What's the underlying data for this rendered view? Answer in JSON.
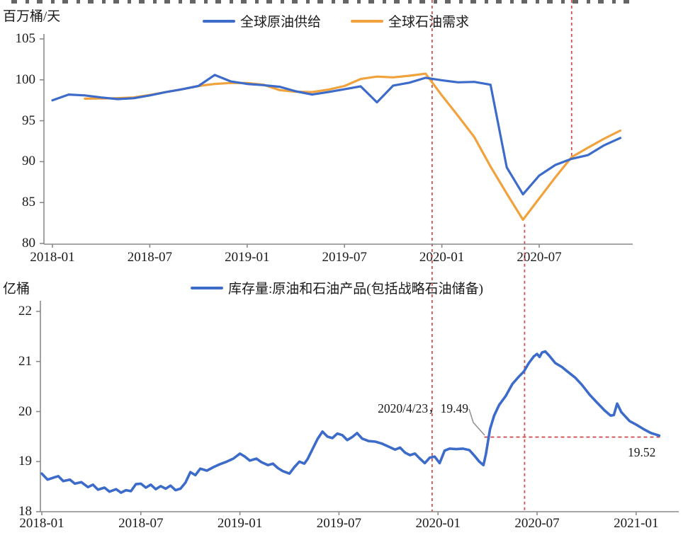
{
  "colors": {
    "supply_blue": "#3d6bc9",
    "demand_orange": "#f0a23c",
    "event_dashed_red": "#cc5252",
    "axis_gray": "#8a8a8a",
    "text": "#1a1a1a",
    "leader_gray": "#8f8f8f"
  },
  "chart_data": [
    {
      "type": "line",
      "unit_label": "百万桶/天",
      "x_start": "2018-01",
      "x_step": "month",
      "x_ticks": [
        "2018-01",
        "2018-07",
        "2019-01",
        "2019-07",
        "2020-01",
        "2020-07"
      ],
      "y_ticks": [
        105,
        100,
        95,
        90,
        85,
        80
      ],
      "ylim": [
        80,
        105
      ],
      "grid": false,
      "legend_position": "top",
      "series": [
        {
          "name": "全球原油供给",
          "color": "#3d6bc9",
          "start_month": 0,
          "values": [
            97.5,
            98.2,
            98.1,
            97.85,
            97.65,
            97.75,
            98.1,
            98.5,
            98.85,
            99.25,
            100.6,
            99.8,
            99.5,
            99.35,
            99.15,
            98.6,
            98.2,
            98.5,
            98.85,
            99.2,
            97.25,
            99.3,
            99.65,
            100.25,
            99.95,
            99.7,
            99.75,
            99.4,
            89.3,
            86.0,
            88.3,
            89.6,
            90.35,
            90.8,
            92.0,
            92.9
          ]
        },
        {
          "name": "全球石油需求",
          "color": "#f0a23c",
          "start_month": 2,
          "values": [
            97.7,
            97.72,
            97.76,
            97.85,
            98.15,
            98.5,
            98.85,
            99.25,
            99.5,
            99.62,
            99.6,
            99.4,
            98.75,
            98.55,
            98.5,
            98.8,
            99.25,
            100.1,
            100.4,
            100.3,
            100.5,
            100.75,
            98.1,
            95.6,
            93.0,
            89.4,
            86.1,
            82.9,
            85.5,
            88.1,
            90.55,
            91.7,
            92.8,
            93.8
          ]
        }
      ],
      "vlines": [
        {
          "month": 23.4,
          "style": "dashed-red",
          "span": "through-both-charts"
        },
        {
          "month": 29.1,
          "style": "dashed-red",
          "from_value": 82.7,
          "span": "down-through-bottom-chart"
        },
        {
          "month": 32.0,
          "style": "dashed-red",
          "to_value": 90.3,
          "span": "top-only"
        }
      ]
    },
    {
      "type": "line",
      "unit_label": "亿桶",
      "x_start": "2018-01",
      "x_step": "month",
      "x_ticks": [
        "2018-01",
        "2018-07",
        "2019-01",
        "2019-07",
        "2020-01",
        "2020-07",
        "2021-01"
      ],
      "y_ticks": [
        22,
        21,
        20,
        19,
        18
      ],
      "ylim": [
        18,
        22
      ],
      "grid": false,
      "legend_position": "top",
      "series": [
        {
          "name": "库存量:原油和石油产品(包括战略石油储备)",
          "color": "#3d6bc9",
          "points": [
            [
              0,
              18.76
            ],
            [
              0.35,
              18.64
            ],
            [
              0.7,
              18.68
            ],
            [
              1,
              18.71
            ],
            [
              1.3,
              18.61
            ],
            [
              1.7,
              18.64
            ],
            [
              2,
              18.56
            ],
            [
              2.4,
              18.59
            ],
            [
              2.8,
              18.49
            ],
            [
              3.1,
              18.54
            ],
            [
              3.4,
              18.44
            ],
            [
              3.8,
              18.48
            ],
            [
              4.1,
              18.4
            ],
            [
              4.5,
              18.45
            ],
            [
              4.8,
              18.38
            ],
            [
              5.1,
              18.43
            ],
            [
              5.4,
              18.41
            ],
            [
              5.7,
              18.55
            ],
            [
              6,
              18.56
            ],
            [
              6.3,
              18.48
            ],
            [
              6.6,
              18.54
            ],
            [
              6.9,
              18.45
            ],
            [
              7.2,
              18.51
            ],
            [
              7.5,
              18.46
            ],
            [
              7.8,
              18.52
            ],
            [
              8.1,
              18.43
            ],
            [
              8.4,
              18.46
            ],
            [
              8.7,
              18.58
            ],
            [
              9,
              18.79
            ],
            [
              9.3,
              18.73
            ],
            [
              9.6,
              18.86
            ],
            [
              10,
              18.82
            ],
            [
              10.4,
              18.89
            ],
            [
              10.8,
              18.95
            ],
            [
              11.2,
              19.0
            ],
            [
              11.6,
              19.06
            ],
            [
              12,
              19.16
            ],
            [
              12.3,
              19.1
            ],
            [
              12.6,
              19.02
            ],
            [
              13,
              19.06
            ],
            [
              13.3,
              18.99
            ],
            [
              13.7,
              18.93
            ],
            [
              14,
              18.96
            ],
            [
              14.3,
              18.87
            ],
            [
              14.6,
              18.81
            ],
            [
              15,
              18.76
            ],
            [
              15.3,
              18.89
            ],
            [
              15.6,
              19.0
            ],
            [
              15.9,
              18.96
            ],
            [
              16.1,
              19.05
            ],
            [
              16.4,
              19.25
            ],
            [
              16.7,
              19.45
            ],
            [
              17,
              19.6
            ],
            [
              17.3,
              19.5
            ],
            [
              17.6,
              19.47
            ],
            [
              17.9,
              19.56
            ],
            [
              18.2,
              19.53
            ],
            [
              18.5,
              19.43
            ],
            [
              18.8,
              19.49
            ],
            [
              19.1,
              19.57
            ],
            [
              19.4,
              19.46
            ],
            [
              19.8,
              19.41
            ],
            [
              20.2,
              19.4
            ],
            [
              20.6,
              19.36
            ],
            [
              21,
              19.3
            ],
            [
              21.4,
              19.24
            ],
            [
              21.7,
              19.28
            ],
            [
              22,
              19.18
            ],
            [
              22.3,
              19.13
            ],
            [
              22.6,
              19.16
            ],
            [
              22.9,
              19.06
            ],
            [
              23.2,
              18.97
            ],
            [
              23.5,
              19.08
            ],
            [
              23.8,
              19.1
            ],
            [
              24.1,
              18.97
            ],
            [
              24.4,
              19.22
            ],
            [
              24.7,
              19.26
            ],
            [
              25.1,
              19.25
            ],
            [
              25.5,
              19.26
            ],
            [
              25.9,
              19.23
            ],
            [
              26.2,
              19.12
            ],
            [
              26.5,
              19.0
            ],
            [
              26.75,
              18.93
            ],
            [
              26.9,
              19.15
            ],
            [
              27.15,
              19.65
            ],
            [
              27.4,
              19.92
            ],
            [
              27.7,
              20.13
            ],
            [
              28.1,
              20.31
            ],
            [
              28.5,
              20.55
            ],
            [
              28.9,
              20.7
            ],
            [
              29.2,
              20.8
            ],
            [
              29.5,
              20.97
            ],
            [
              29.8,
              21.1
            ],
            [
              30,
              21.15
            ],
            [
              30.15,
              21.09
            ],
            [
              30.3,
              21.18
            ],
            [
              30.5,
              21.2
            ],
            [
              30.75,
              21.11
            ],
            [
              31.1,
              20.97
            ],
            [
              31.5,
              20.89
            ],
            [
              31.8,
              20.81
            ],
            [
              32.3,
              20.68
            ],
            [
              32.7,
              20.54
            ],
            [
              33.2,
              20.33
            ],
            [
              33.6,
              20.19
            ],
            [
              34.1,
              20.02
            ],
            [
              34.45,
              19.92
            ],
            [
              34.65,
              19.93
            ],
            [
              34.85,
              20.16
            ],
            [
              35.1,
              19.99
            ],
            [
              35.6,
              19.81
            ],
            [
              36,
              19.74
            ],
            [
              36.5,
              19.64
            ],
            [
              36.9,
              19.57
            ],
            [
              37.1,
              19.55
            ],
            [
              37.4,
              19.52
            ]
          ]
        }
      ],
      "vlines": [
        {
          "month": 23.65,
          "style": "dashed-red"
        },
        {
          "month": 29.2,
          "style": "dashed-red"
        }
      ],
      "hline": {
        "value": 19.49,
        "style": "dashed-red",
        "from_month": 26.8,
        "to_month": 37.45
      },
      "callout": {
        "text": "2020/4/23，19.49",
        "point_month": 27.0,
        "point_value": 19.49
      },
      "end_label": "19.52"
    }
  ]
}
